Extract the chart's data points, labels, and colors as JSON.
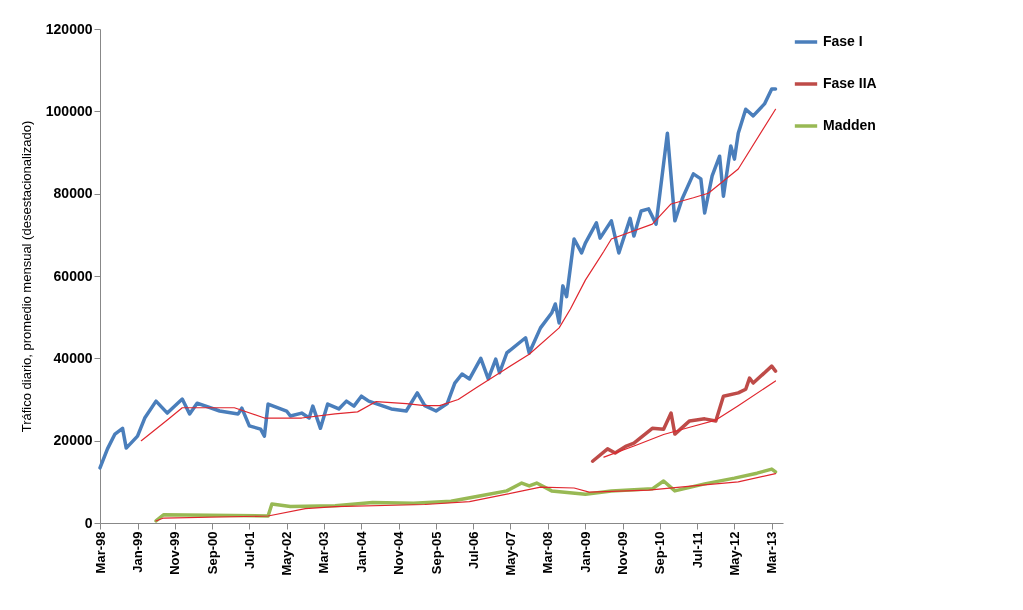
{
  "chart_data": {
    "type": "line",
    "ylabel": "Tráfico diario, promedio mensual (desestacionalizado)",
    "xlim": [
      "1998-03",
      "2013-06"
    ],
    "ylim": [
      0,
      120000
    ],
    "yticks": [
      0,
      20000,
      40000,
      60000,
      80000,
      100000,
      120000
    ],
    "xticks": [
      {
        "value": "1998-03",
        "label": "Mar-98"
      },
      {
        "value": "1999-01",
        "label": "Jan-99"
      },
      {
        "value": "1999-11",
        "label": "Nov-99"
      },
      {
        "value": "2000-09",
        "label": "Sep-00"
      },
      {
        "value": "2001-07",
        "label": "Jul-01"
      },
      {
        "value": "2002-05",
        "label": "May-02"
      },
      {
        "value": "2003-03",
        "label": "Mar-03"
      },
      {
        "value": "2004-01",
        "label": "Jan-04"
      },
      {
        "value": "2004-11",
        "label": "Nov-04"
      },
      {
        "value": "2005-09",
        "label": "Sep-05"
      },
      {
        "value": "2006-07",
        "label": "Jul-06"
      },
      {
        "value": "2007-05",
        "label": "May-07"
      },
      {
        "value": "2008-03",
        "label": "Mar-08"
      },
      {
        "value": "2009-01",
        "label": "Jan-09"
      },
      {
        "value": "2009-11",
        "label": "Nov-09"
      },
      {
        "value": "2010-09",
        "label": "Sep-10"
      },
      {
        "value": "2011-07",
        "label": "Jul-11"
      },
      {
        "value": "2012-05",
        "label": "May-12"
      },
      {
        "value": "2013-03",
        "label": "Mar-13"
      }
    ],
    "grid": false,
    "legend": "right",
    "marker": "none",
    "line_style": "solid",
    "series": [
      {
        "name": "Fase I",
        "color": "#4a7ebb",
        "x": [
          "1998-03",
          "1998-05",
          "1998-07",
          "1998-09",
          "1998-10",
          "1999-01",
          "1999-03",
          "1999-06",
          "1999-09",
          "2000-01",
          "2000-03",
          "2000-05",
          "2000-11",
          "2001-04",
          "2001-05",
          "2001-07",
          "2001-10",
          "2001-11",
          "2001-12",
          "2002-05",
          "2002-06",
          "2002-09",
          "2002-11",
          "2002-12",
          "2003-02",
          "2003-04",
          "2003-07",
          "2003-09",
          "2003-11",
          "2004-01",
          "2004-03",
          "2004-09",
          "2005-01",
          "2005-04",
          "2005-06",
          "2005-09",
          "2005-12",
          "2006-02",
          "2006-04",
          "2006-06",
          "2006-09",
          "2006-11",
          "2007-01",
          "2007-02",
          "2007-04",
          "2007-09",
          "2007-10",
          "2008-01",
          "2008-04",
          "2008-05",
          "2008-06",
          "2008-07",
          "2008-08",
          "2008-10",
          "2008-12",
          "2009-01",
          "2009-04",
          "2009-05",
          "2009-08",
          "2009-10",
          "2010-01",
          "2010-02",
          "2010-04",
          "2010-06",
          "2010-08",
          "2010-11",
          "2011-01",
          "2011-03",
          "2011-06",
          "2011-08",
          "2011-09",
          "2011-11",
          "2012-01",
          "2012-02",
          "2012-04",
          "2012-05",
          "2012-06",
          "2012-08",
          "2012-10",
          "2013-01",
          "2013-03",
          "2013-04"
        ],
        "values": [
          13400,
          18000,
          21600,
          23000,
          18200,
          21100,
          25500,
          29600,
          26700,
          30100,
          26500,
          29100,
          27200,
          26500,
          27900,
          23600,
          22800,
          21100,
          28900,
          27200,
          26000,
          26700,
          25500,
          28400,
          23000,
          28900,
          27700,
          29600,
          28400,
          30800,
          29600,
          27700,
          27200,
          31600,
          28500,
          27200,
          29000,
          34000,
          36200,
          35000,
          40000,
          35000,
          39800,
          36500,
          41300,
          45000,
          41300,
          47400,
          51000,
          53200,
          48600,
          57600,
          55000,
          69000,
          65600,
          68000,
          72900,
          69200,
          73400,
          65600,
          74000,
          69700,
          75800,
          76300,
          72600,
          94700,
          73400,
          78700,
          84800,
          83600,
          75300,
          84300,
          89100,
          79400,
          91600,
          88400,
          94700,
          100500,
          98900,
          101800,
          105400,
          105400
        ]
      },
      {
        "name": "Fase IIA",
        "color": "#be4b48",
        "x": [
          "2009-03",
          "2009-07",
          "2009-09",
          "2009-12",
          "2010-02",
          "2010-07",
          "2010-10",
          "2010-12",
          "2011-01",
          "2011-05",
          "2011-09",
          "2011-12",
          "2012-02",
          "2012-06",
          "2012-08",
          "2012-09",
          "2012-10",
          "2013-03",
          "2013-04"
        ],
        "values": [
          15000,
          18000,
          17000,
          18700,
          19400,
          23000,
          22800,
          26700,
          21600,
          24800,
          25300,
          24800,
          30800,
          31600,
          32500,
          35200,
          34000,
          38100,
          36900
        ]
      },
      {
        "name": "Madden",
        "color": "#98b954",
        "x": [
          "1999-06",
          "1999-08",
          "2001-12",
          "2002-01",
          "2002-06",
          "2003-06",
          "2004-04",
          "2005-03",
          "2006-01",
          "2006-09",
          "2007-04",
          "2007-08",
          "2007-10",
          "2007-12",
          "2008-04",
          "2009-01",
          "2009-08",
          "2010-07",
          "2010-10",
          "2011-01",
          "2011-09",
          "2012-05",
          "2012-11",
          "2013-03",
          "2013-04"
        ],
        "values": [
          500,
          2000,
          1700,
          4600,
          4000,
          4200,
          5000,
          4800,
          5300,
          6600,
          7800,
          9700,
          9000,
          9700,
          7800,
          7000,
          7800,
          8300,
          10200,
          7800,
          9500,
          10900,
          12100,
          13100,
          12400
        ]
      },
      {
        "color": "#e0262e",
        "x": [
          "1999-02",
          "1999-09",
          "2000-01",
          "2001-03",
          "2001-11",
          "2002-09",
          "2003-06",
          "2003-12",
          "2004-05",
          "2005-01",
          "2005-06",
          "2005-10",
          "2006-03",
          "2006-08",
          "2007-03",
          "2007-10",
          "2008-06",
          "2008-09",
          "2009-01",
          "2009-06",
          "2009-08",
          "2010-07",
          "2010-12",
          "2011-06",
          "2011-10",
          "2012-06",
          "2013-04"
        ],
        "values": [
          20000,
          25000,
          28000,
          28000,
          25500,
          25500,
          26500,
          27000,
          29500,
          29000,
          28500,
          28500,
          30000,
          33000,
          37000,
          41000,
          47400,
          52000,
          59000,
          66000,
          69000,
          72600,
          77500,
          79000,
          80100,
          86000,
          100500
        ]
      },
      {
        "color": "#e0262e",
        "x": [
          "2009-06",
          "2010-03",
          "2010-10",
          "2011-06",
          "2011-12",
          "2012-06",
          "2013-04"
        ],
        "values": [
          16000,
          19000,
          21500,
          23500,
          25000,
          28500,
          34500
        ]
      },
      {
        "color": "#e0262e",
        "x": [
          "1999-06",
          "1999-08",
          "2001-12",
          "2002-10",
          "2003-06",
          "2005-06",
          "2006-06",
          "2007-04",
          "2008-01",
          "2008-10",
          "2009-02",
          "2010-06",
          "2011-06",
          "2012-06",
          "2013-04"
        ],
        "values": [
          500,
          1200,
          1700,
          3500,
          4000,
          4500,
          5200,
          7000,
          8700,
          8500,
          7500,
          8000,
          9000,
          10000,
          12000
        ]
      }
    ]
  }
}
